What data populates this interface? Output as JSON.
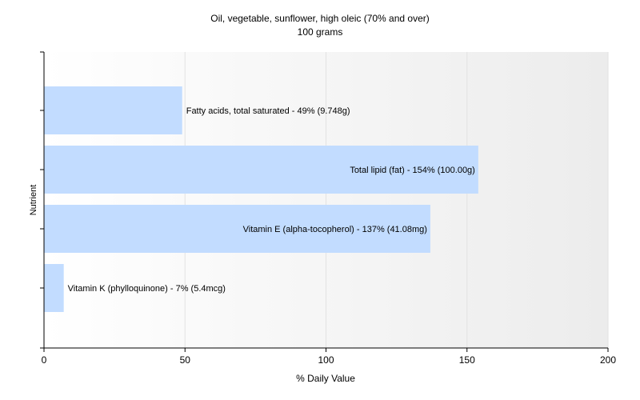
{
  "chart_data": {
    "type": "bar",
    "orientation": "horizontal",
    "title": "Oil, vegetable, sunflower, high oleic (70% and over)",
    "subtitle": "100 grams",
    "xlabel": "% Daily Value",
    "ylabel": "Nutrient",
    "xlim": [
      0,
      200
    ],
    "xticks": [
      "0",
      "50",
      "100",
      "150",
      "200"
    ],
    "grid": true,
    "bar_color": "#c2dcff",
    "categories": [
      "Fatty acids, total saturated",
      "Total lipid (fat)",
      "Vitamin E (alpha-tocopherol)",
      "Vitamin K (phylloquinone)"
    ],
    "values": [
      49,
      154,
      137,
      7
    ],
    "labels": [
      "Fatty acids, total saturated - 49% (9.748g)",
      "Total lipid (fat) - 154% (100.00g)",
      "Vitamin E (alpha-tocopherol) - 137% (41.08mg)",
      "Vitamin K (phylloquinone) - 7% (5.4mcg)"
    ]
  }
}
